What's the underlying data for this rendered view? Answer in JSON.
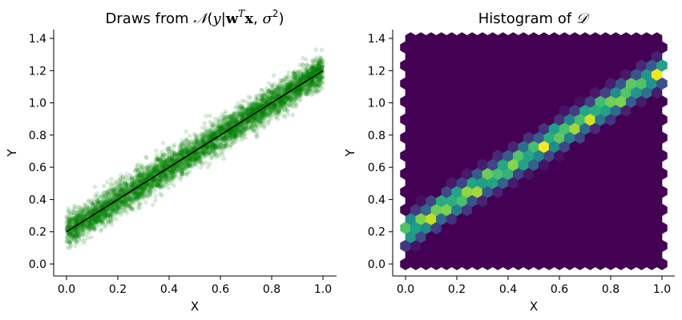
{
  "chart_data": [
    {
      "type": "scatter",
      "title": "Draws from 𝒩(y|wᵀx, σ²)",
      "title_parts": {
        "prefix": "Draws from ",
        "N": "𝒩",
        "open": "(",
        "y": "y",
        "bar": "|",
        "w": "w",
        "T": "T",
        "x": "x",
        "comma": ", ",
        "sigma": "σ",
        "sq": "2",
        "close": ")"
      },
      "xlabel": "X",
      "ylabel": "Y",
      "xlim": [
        -0.05,
        1.05
      ],
      "ylim": [
        -0.07,
        1.46
      ],
      "xticks": [
        0.0,
        0.2,
        0.4,
        0.6,
        0.8,
        1.0
      ],
      "xtick_labels": [
        "0.0",
        "0.2",
        "0.4",
        "0.6",
        "0.8",
        "1.0"
      ],
      "yticks": [
        0.0,
        0.2,
        0.4,
        0.6,
        0.8,
        1.0,
        1.2,
        1.4
      ],
      "ytick_labels": [
        "0.0",
        "0.2",
        "0.4",
        "0.6",
        "0.8",
        "1.0",
        "1.2",
        "1.4"
      ],
      "grid": false,
      "point_color": "#008000",
      "point_alpha": 0.15,
      "line_color": "#000000",
      "fit_line": {
        "x": [
          0.0,
          1.0
        ],
        "y": [
          0.2,
          1.2
        ]
      },
      "points_band": {
        "x_range": [
          0.0,
          1.0
        ],
        "intercept": 0.2,
        "slope": 1.0,
        "noise_sd": 0.05,
        "approx_count": 5000
      }
    },
    {
      "type": "heatmap",
      "title": "Histogram of 𝒟",
      "title_parts": {
        "prefix": "Histogram of ",
        "D": "𝒟"
      },
      "xlabel": "X",
      "ylabel": "Y",
      "xlim": [
        -0.05,
        1.05
      ],
      "ylim": [
        -0.07,
        1.46
      ],
      "xticks": [
        0.0,
        0.2,
        0.4,
        0.6,
        0.8,
        1.0
      ],
      "xtick_labels": [
        "0.0",
        "0.2",
        "0.4",
        "0.6",
        "0.8",
        "1.0"
      ],
      "yticks": [
        0.0,
        0.2,
        0.4,
        0.6,
        0.8,
        1.0,
        1.2,
        1.4
      ],
      "ytick_labels": [
        "0.0",
        "0.2",
        "0.4",
        "0.6",
        "0.8",
        "1.0",
        "1.2",
        "1.4"
      ],
      "grid": false,
      "colormap": "viridis",
      "hex_extent": {
        "x": [
          0.0,
          1.0
        ],
        "y": [
          0.0,
          1.4
        ]
      },
      "grid_size": 25,
      "density_model": {
        "intercept": 0.2,
        "slope": 1.0,
        "noise_sd": 0.05
      }
    }
  ]
}
